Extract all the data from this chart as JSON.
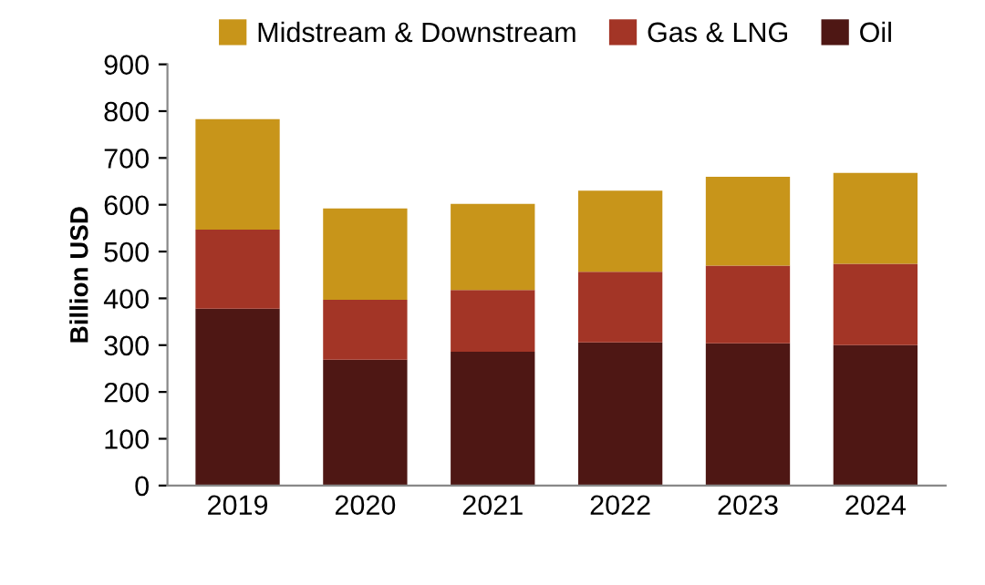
{
  "chart_data": {
    "type": "bar",
    "stacked": true,
    "ylabel": "Billion USD",
    "categories": [
      "2019",
      "2020",
      "2021",
      "2022",
      "2023",
      "2024"
    ],
    "series": [
      {
        "name": "Oil",
        "color": "#4e1714",
        "values": [
          378,
          269,
          286,
          306,
          304,
          300
        ]
      },
      {
        "name": "Gas & LNG",
        "color": "#a33526",
        "values": [
          169,
          128,
          132,
          151,
          166,
          174
        ]
      },
      {
        "name": "Midstream & Downstream",
        "color": "#c8951a",
        "values": [
          236,
          195,
          184,
          173,
          190,
          194
        ]
      }
    ],
    "ylim": [
      0,
      900
    ],
    "yticks": [
      0,
      100,
      200,
      300,
      400,
      500,
      600,
      700,
      800,
      900
    ],
    "grid": false,
    "legend": "top"
  }
}
